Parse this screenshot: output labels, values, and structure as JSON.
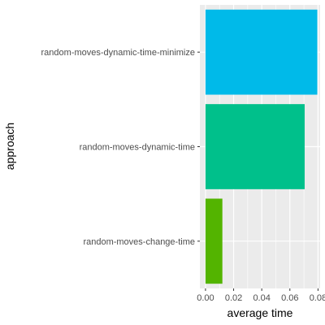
{
  "chart_data": {
    "type": "bar",
    "orientation": "horizontal",
    "categories": [
      "random-moves-dynamic-time-minimize",
      "random-moves-dynamic-time",
      "random-moves-change-time"
    ],
    "values": [
      0.0795,
      0.0705,
      0.012
    ],
    "bar_colors": [
      "#00BAE9",
      "#00C08B",
      "#53B400"
    ],
    "xlabel": "average time",
    "ylabel": "approach",
    "xlim": [
      -0.004,
      0.0815
    ],
    "xticks": [
      0.0,
      0.02,
      0.04,
      0.06,
      0.08
    ],
    "xtick_labels": [
      "0.00",
      "0.02",
      "0.04",
      "0.06",
      "0.08"
    ],
    "grid": true,
    "legend": "none",
    "panel_background": "#EBEBEB",
    "gridline_color": "#FFFFFF"
  }
}
